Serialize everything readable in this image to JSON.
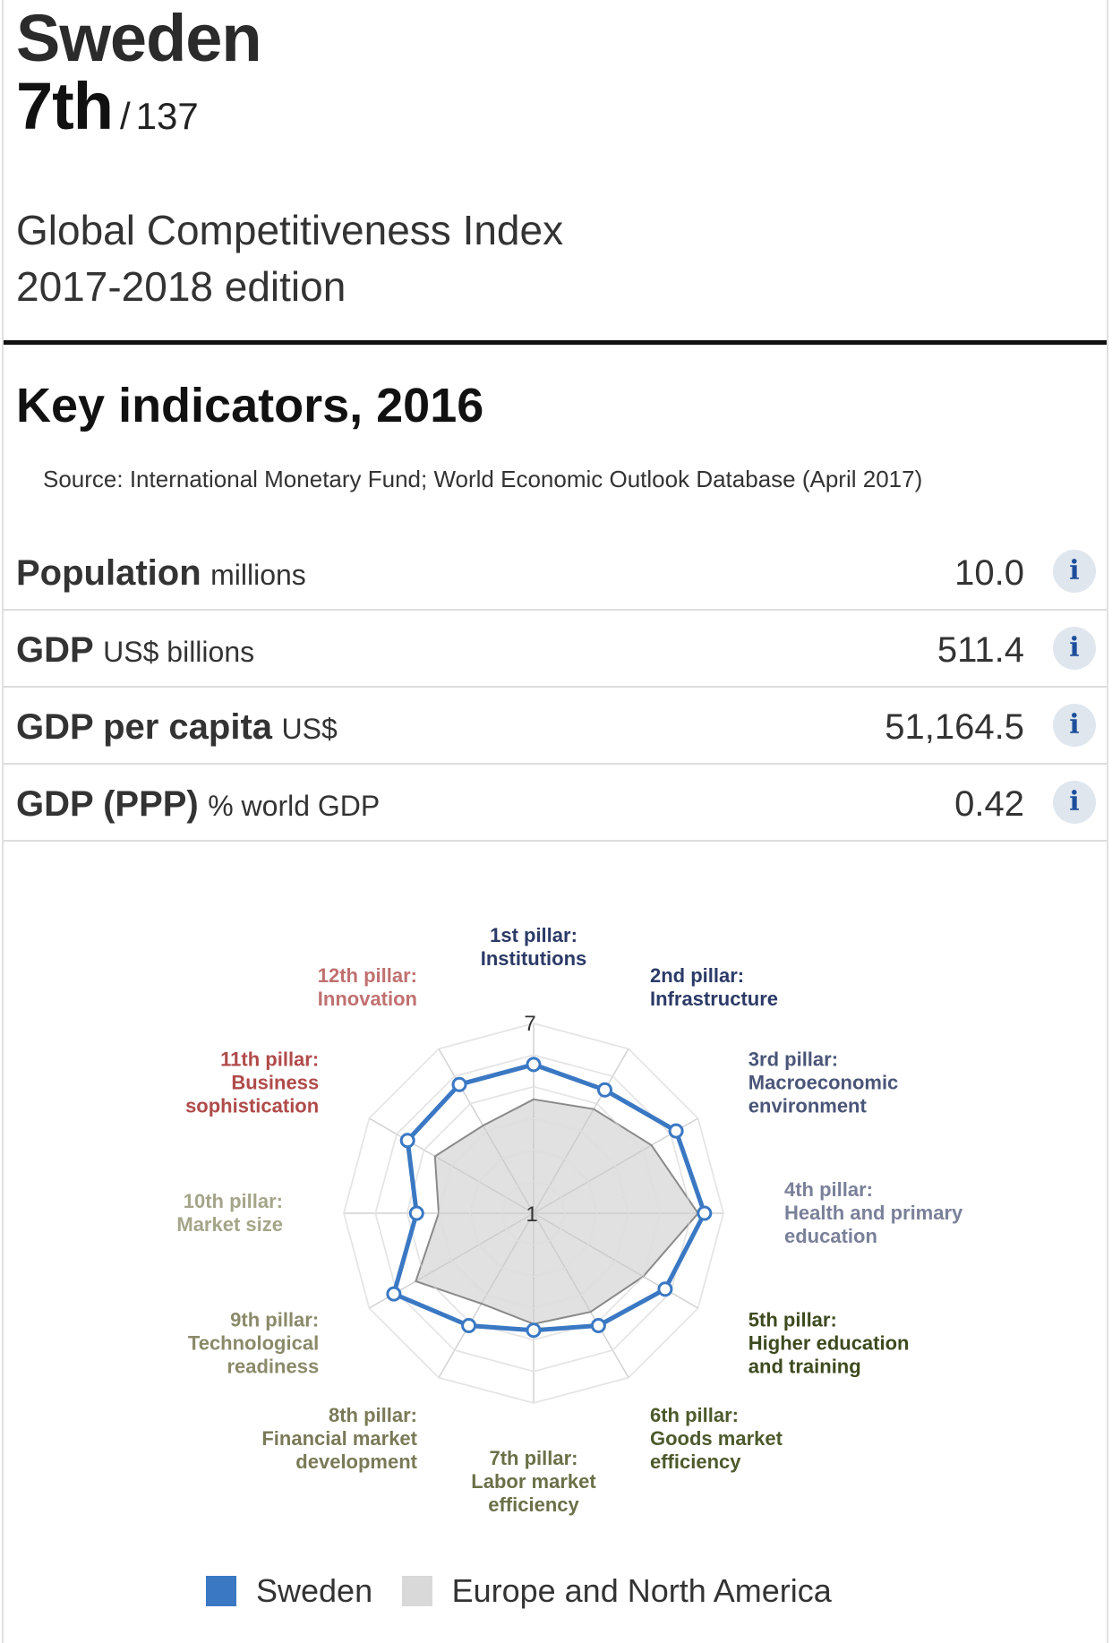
{
  "header": {
    "country": "Sweden",
    "rank": "7th",
    "rank_separator": "/",
    "rank_total": "137",
    "index_title": "Global Competitiveness Index",
    "edition": "2017-2018 edition"
  },
  "key_indicators": {
    "title": "Key indicators, 2016",
    "source": "Source: International Monetary Fund; World Economic Outlook Database (April 2017)",
    "info_icon": "info-icon",
    "rows": [
      {
        "name": "Population",
        "unit": "millions",
        "value": "10.0"
      },
      {
        "name": "GDP",
        "unit": "US$ billions",
        "value": "511.4"
      },
      {
        "name": "GDP per capita",
        "unit": "US$",
        "value": "51,164.5"
      },
      {
        "name": "GDP (PPP)",
        "unit": "% world GDP",
        "value": "0.42"
      }
    ]
  },
  "chart_data": {
    "type": "radar",
    "scale_min": 1,
    "scale_max": 7,
    "scale_labels": [
      "7",
      "1"
    ],
    "axes": [
      {
        "line1": "1st pillar:",
        "line2": "Institutions",
        "line3": "",
        "color": "#2b3a67"
      },
      {
        "line1": "2nd pillar:",
        "line2": "Infrastructure",
        "line3": "",
        "color": "#2b3a67"
      },
      {
        "line1": "3rd pillar:",
        "line2": "Macroeconomic",
        "line3": "environment",
        "color": "#4a5578"
      },
      {
        "line1": "4th pillar:",
        "line2": "Health and primary",
        "line3": "education",
        "color": "#7a8099"
      },
      {
        "line1": "5th pillar:",
        "line2": "Higher education",
        "line3": "and training",
        "color": "#3d4a1e"
      },
      {
        "line1": "6th pillar:",
        "line2": "Goods market",
        "line3": "efficiency",
        "color": "#4d5a2c"
      },
      {
        "line1": "7th pillar:",
        "line2": "Labor market",
        "line3": "efficiency",
        "color": "#6b7048"
      },
      {
        "line1": "8th pillar:",
        "line2": "Financial market",
        "line3": "development",
        "color": "#7a7a58"
      },
      {
        "line1": "9th pillar:",
        "line2": "Technological",
        "line3": "readiness",
        "color": "#8a8a6a"
      },
      {
        "line1": "10th pillar:",
        "line2": "Market size",
        "line3": "",
        "color": "#a5a58a"
      },
      {
        "line1": "11th pillar:",
        "line2": "Business",
        "line3": "sophistication",
        "color": "#b04a4a"
      },
      {
        "line1": "12th pillar:",
        "line2": "Innovation",
        "line3": "",
        "color": "#c07070"
      }
    ],
    "series": [
      {
        "name": "Sweden",
        "color": "#3a78c3",
        "values": [
          5.7,
          5.5,
          6.2,
          6.4,
          5.8,
          5.1,
          4.7,
          5.1,
          6.1,
          4.7,
          5.6,
          5.7
        ]
      },
      {
        "name": "Europe and North America",
        "color": "#d9d9d9",
        "values": [
          4.6,
          4.8,
          5.3,
          6.2,
          5.0,
          4.6,
          4.5,
          4.3,
          5.3,
          4.0,
          4.6,
          4.2
        ]
      }
    ]
  }
}
